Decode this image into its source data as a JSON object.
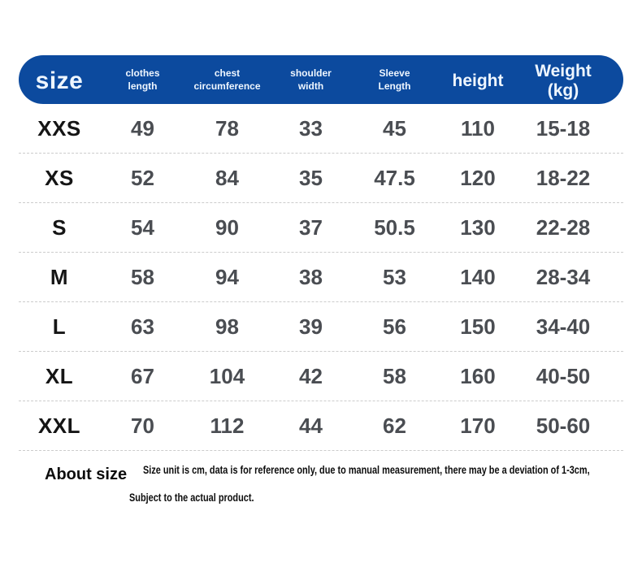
{
  "chart_data": {
    "type": "table",
    "title": "size",
    "columns": [
      "size",
      "clothes length",
      "chest circumference",
      "shoulder width",
      "Sleeve Length",
      "height",
      "Weight (kg)"
    ],
    "rows": [
      [
        "XXS",
        "49",
        "78",
        "33",
        "45",
        "110",
        "15-18"
      ],
      [
        "XS",
        "52",
        "84",
        "35",
        "47.5",
        "120",
        "18-22"
      ],
      [
        "S",
        "54",
        "90",
        "37",
        "50.5",
        "130",
        "22-28"
      ],
      [
        "M",
        "58",
        "94",
        "38",
        "53",
        "140",
        "28-34"
      ],
      [
        "L",
        "63",
        "98",
        "39",
        "56",
        "150",
        "34-40"
      ],
      [
        "XL",
        "67",
        "104",
        "42",
        "58",
        "160",
        "40-50"
      ],
      [
        "XXL",
        "70",
        "112",
        "44",
        "62",
        "170",
        "50-60"
      ]
    ]
  },
  "header": {
    "size": "size",
    "clothes_length": [
      "clothes",
      "length"
    ],
    "chest_circumference": [
      "chest",
      "circumference"
    ],
    "shoulder_width": [
      "shoulder",
      "width"
    ],
    "sleeve_length": [
      "Sleeve",
      "Length"
    ],
    "height": "height",
    "weight": "Weight (kg)"
  },
  "footer": {
    "title": "About size",
    "note_line1": "Size unit is cm, data is for reference only, due to manual measurement, there may be a deviation of 1-3cm,",
    "note_line2": "Subject to the actual product."
  },
  "colors": {
    "header_bg": "#0c4a9e",
    "header_text": "#eef6ff",
    "label_color": "#151515",
    "value_color": "#4a4d52",
    "divider_color": "#cccccc"
  }
}
